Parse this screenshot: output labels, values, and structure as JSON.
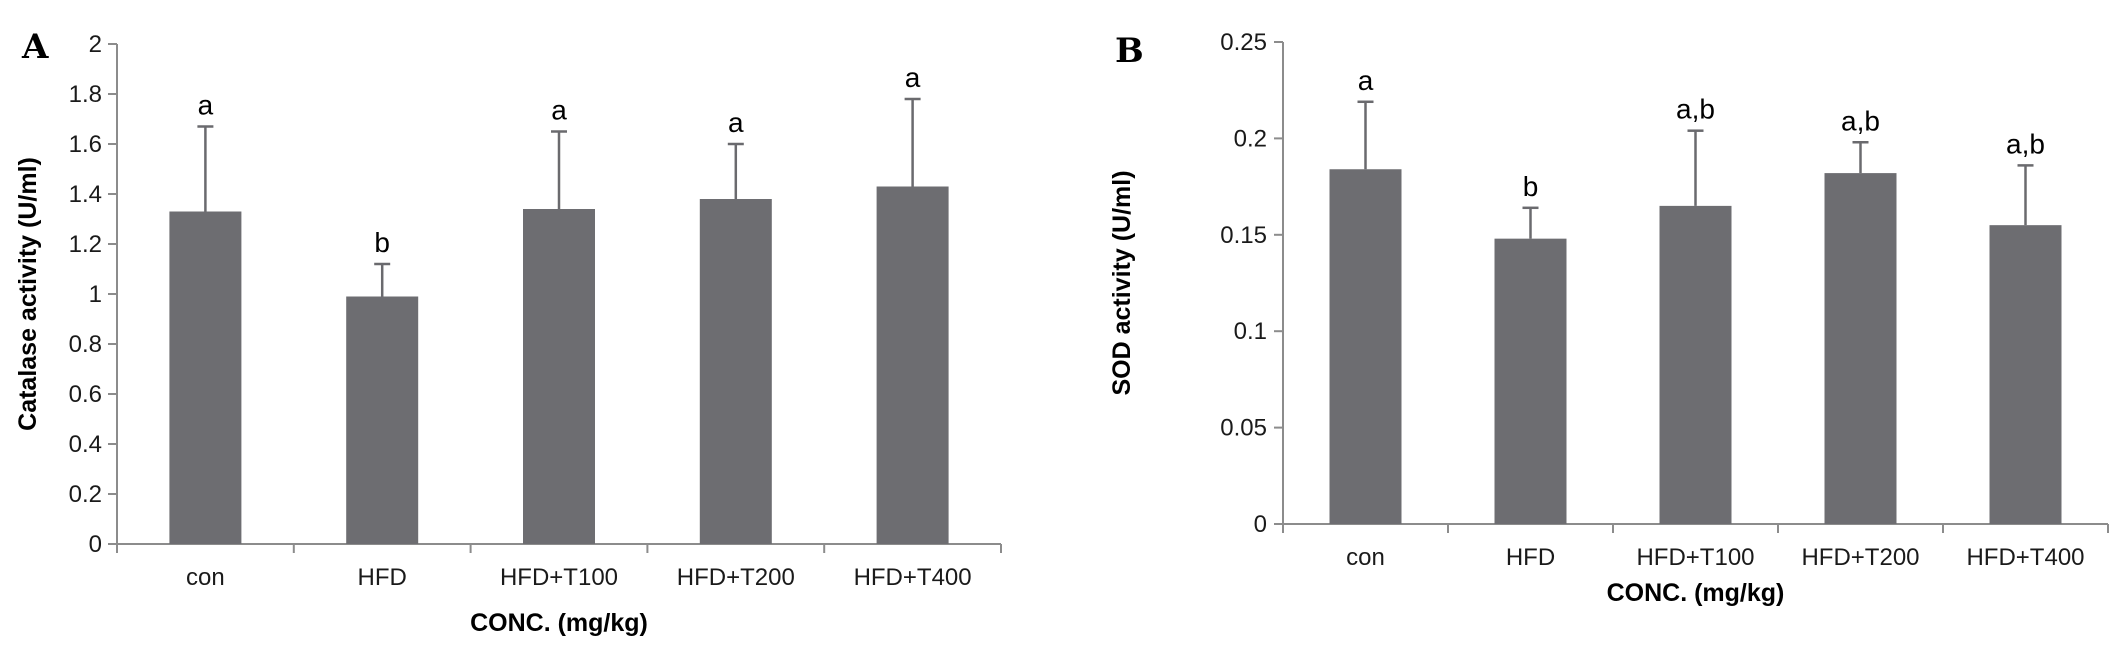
{
  "chart_data": [
    {
      "type": "bar",
      "panel": "A",
      "categories": [
        "con",
        "HFD",
        "HFD+T100",
        "HFD+T200",
        "HFD+T400"
      ],
      "values": [
        1.33,
        0.99,
        1.34,
        1.38,
        1.43
      ],
      "errors": [
        0.34,
        0.13,
        0.31,
        0.22,
        0.35
      ],
      "significance": [
        "a",
        "b",
        "a",
        "a",
        "a"
      ],
      "xlabel": "CONC. (mg/kg)",
      "ylabel": "Catalase activity (U/ml)",
      "ylim": [
        0,
        2
      ],
      "yticks": [
        "0",
        "0.2",
        "0.4",
        "0.6",
        "0.8",
        "1",
        "1.2",
        "1.4",
        "1.6",
        "1.8",
        "2"
      ],
      "grid": false,
      "bar_color": "#6d6d71"
    },
    {
      "type": "bar",
      "panel": "B",
      "categories": [
        "con",
        "HFD",
        "HFD+T100",
        "HFD+T200",
        "HFD+T400"
      ],
      "values": [
        0.184,
        0.148,
        0.165,
        0.182,
        0.155
      ],
      "errors": [
        0.035,
        0.016,
        0.039,
        0.016,
        0.031
      ],
      "significance": [
        "a",
        "b",
        "a,b",
        "a,b",
        "a,b"
      ],
      "xlabel": "CONC. (mg/kg)",
      "ylabel": "SOD activity (U/ml)",
      "ylim": [
        0,
        0.25
      ],
      "yticks": [
        "0",
        "0.05",
        "0.1",
        "0.15",
        "0.2",
        "0.25"
      ],
      "grid": false,
      "bar_color": "#6d6d71"
    }
  ]
}
